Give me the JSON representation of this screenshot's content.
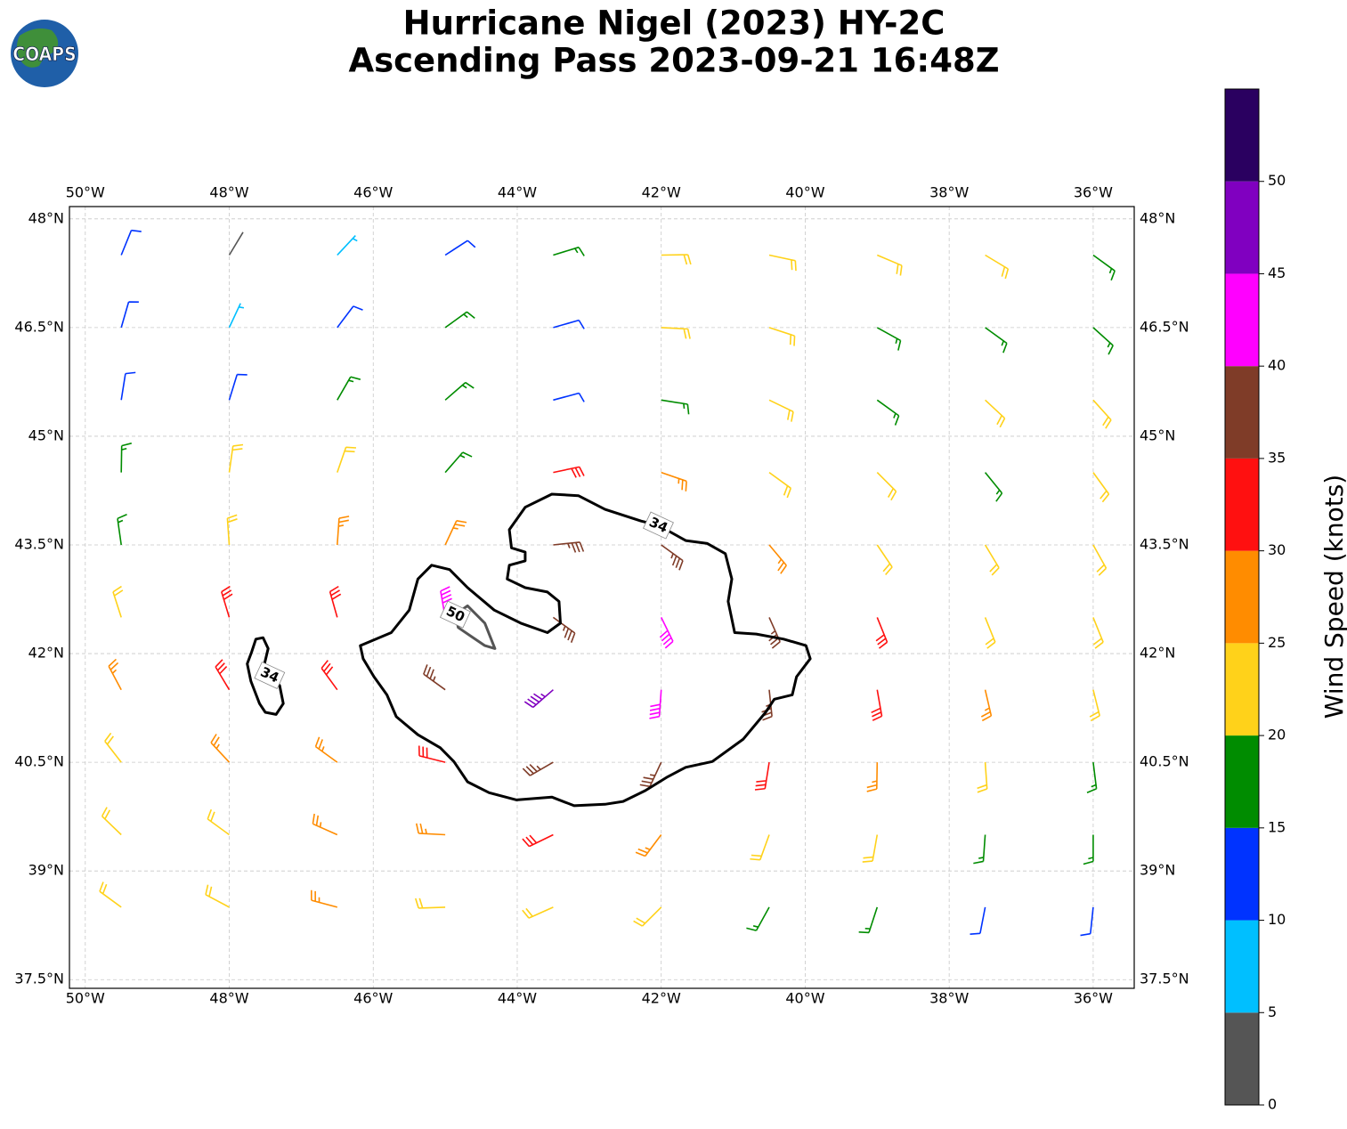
{
  "chart_data": {
    "type": "wind_barbs",
    "title": [
      "Hurricane Nigel (2023) HY-2C",
      "Ascending Pass 2023-09-21 16:48Z"
    ],
    "logo": "COAPS",
    "xlim": [
      -50.22,
      -35.43
    ],
    "ylim": [
      37.38,
      48.17
    ],
    "xticks": [
      {
        "value": -50,
        "label": "50°W"
      },
      {
        "value": -48,
        "label": "48°W"
      },
      {
        "value": -46,
        "label": "46°W"
      },
      {
        "value": -44,
        "label": "44°W"
      },
      {
        "value": -42,
        "label": "42°W"
      },
      {
        "value": -40,
        "label": "40°W"
      },
      {
        "value": -38,
        "label": "38°W"
      },
      {
        "value": -36,
        "label": "36°W"
      }
    ],
    "yticks": [
      {
        "value": 48,
        "label": "48°N"
      },
      {
        "value": 46.5,
        "label": "46.5°N"
      },
      {
        "value": 45,
        "label": "45°N"
      },
      {
        "value": 43.5,
        "label": "43.5°N"
      },
      {
        "value": 42,
        "label": "42°N"
      },
      {
        "value": 40.5,
        "label": "40.5°N"
      },
      {
        "value": 39,
        "label": "39°N"
      },
      {
        "value": 37.5,
        "label": "37.5°N"
      }
    ],
    "grid": true,
    "barbs": {
      "lon": [
        -49.5,
        -48,
        -46.5,
        -45,
        -43.5,
        -42,
        -40.5,
        -39,
        -37.5,
        -36
      ],
      "lat": [
        47.5,
        46.5,
        45.5,
        44.5,
        43.5,
        42.5,
        41.5,
        40.5,
        39.5,
        38.5
      ],
      "speed": [
        [
          10,
          3,
          8,
          11,
          17,
          22,
          23,
          22,
          21,
          18
        ],
        [
          12,
          9,
          11,
          16,
          14,
          21,
          23,
          18,
          17,
          16
        ],
        [
          11,
          12,
          17,
          18,
          13,
          19,
          21,
          19,
          21,
          22
        ],
        [
          16,
          21,
          23,
          15,
          30,
          27,
          24,
          22,
          18,
          21
        ],
        [
          17,
          24,
          28,
          29,
          37,
          38,
          27,
          24,
          22,
          21
        ],
        [
          21,
          32,
          33,
          43,
          36,
          42,
          36,
          31,
          24,
          22
        ],
        [
          26,
          33,
          34,
          38,
          46,
          43,
          37,
          32,
          27,
          23
        ],
        [
          24,
          29,
          28,
          33,
          38,
          37,
          33,
          27,
          23,
          19
        ],
        [
          22,
          24,
          27,
          29,
          32,
          28,
          24,
          21,
          18,
          17
        ],
        [
          22,
          23,
          26,
          24,
          23,
          22,
          19,
          17,
          13,
          14
        ]
      ],
      "direction": [
        [
          22,
          31,
          43,
          57,
          73,
          89,
          102,
          113,
          121,
          126
        ],
        [
          16,
          25,
          37,
          54,
          74,
          93,
          108,
          119,
          126,
          132
        ],
        [
          9,
          17,
          30,
          49,
          75,
          99,
          116,
          126,
          133,
          138
        ],
        [
          1,
          8,
          19,
          41,
          78,
          109,
          126,
          135,
          141,
          144
        ],
        [
          352,
          356,
          4,
          25,
          84,
          126,
          140,
          146,
          149,
          151
        ],
        [
          342,
          343,
          344,
          350,
          126,
          154,
          156,
          158,
          158,
          158
        ],
        [
          332,
          329,
          324,
          306,
          229,
          184,
          174,
          170,
          167,
          166
        ],
        [
          322,
          317,
          306,
          284,
          240,
          205,
          189,
          181,
          176,
          173
        ],
        [
          314,
          306,
          294,
          273,
          244,
          217,
          200,
          190,
          184,
          180
        ],
        [
          306,
          298,
          285,
          268,
          246,
          225,
          209,
          198,
          191,
          186
        ]
      ]
    },
    "contours": [
      {
        "level": 34,
        "color": "#000000",
        "lon": [
          -46.18,
          -45.75,
          -45.5,
          -45.38,
          -45.19,
          -44.94,
          -44.69,
          -44.32,
          -43.95,
          -43.58,
          -43.4,
          -43.42,
          -43.58,
          -43.89,
          -44.14,
          -44.11,
          -43.89,
          -43.89,
          -44.08,
          -44.11,
          -43.89,
          -43.52,
          -43.15,
          -42.78,
          -42.28,
          -42.04,
          -41.66,
          -41.36,
          -41.11,
          -41.02,
          -41.07,
          -40.98,
          -40.68,
          -40.3,
          -39.99,
          -39.93,
          -40.12,
          -40.18,
          -40.43,
          -40.55,
          -40.86,
          -41.29,
          -41.66,
          -41.91,
          -42.22,
          -42.53,
          -42.78,
          -43.21,
          -43.52,
          -44.01,
          -44.39,
          -44.69,
          -44.88,
          -45.07,
          -45.38,
          -45.68,
          -45.81,
          -45.99,
          -46.14
        ],
        "lat": [
          42.11,
          42.29,
          42.6,
          43.03,
          43.22,
          43.16,
          42.91,
          42.6,
          42.42,
          42.29,
          42.42,
          42.72,
          42.85,
          42.91,
          43.03,
          43.22,
          43.28,
          43.4,
          43.46,
          43.71,
          44.02,
          44.2,
          44.18,
          43.99,
          43.83,
          43.77,
          43.56,
          43.52,
          43.38,
          43.03,
          42.72,
          42.29,
          42.27,
          42.2,
          42.11,
          41.93,
          41.68,
          41.43,
          41.37,
          41.19,
          40.82,
          40.51,
          40.43,
          40.3,
          40.11,
          39.96,
          39.92,
          39.9,
          40.02,
          39.98,
          40.08,
          40.23,
          40.51,
          40.7,
          40.88,
          41.13,
          41.43,
          41.68,
          41.93
        ]
      },
      {
        "level": 34,
        "color": "#000000",
        "lon": [
          -47.44,
          -47.51,
          -47.46,
          -47.53,
          -47.63,
          -47.69,
          -47.75,
          -47.7,
          -47.58,
          -47.5,
          -47.35,
          -47.25,
          -47.3
        ],
        "lat": [
          41.7,
          41.86,
          42.07,
          42.22,
          42.2,
          42.02,
          41.86,
          41.62,
          41.31,
          41.19,
          41.16,
          41.31,
          41.56
        ]
      },
      {
        "level": 50,
        "color": "#555555",
        "lon": [
          -44.86,
          -44.69,
          -44.45,
          -44.31,
          -44.45,
          -44.63,
          -44.82
        ],
        "lat": [
          42.54,
          42.66,
          42.42,
          42.07,
          42.11,
          42.23,
          42.36
        ]
      }
    ],
    "colorbar": {
      "label": "Wind Speed (knots)",
      "bounds": [
        0,
        5,
        10,
        15,
        20,
        25,
        30,
        35,
        40,
        45,
        50,
        55
      ],
      "colors": [
        "#555555",
        "#00bfff",
        "#0033ff",
        "#008c00",
        "#ffd21a",
        "#ff8c00",
        "#ff1010",
        "#7f3c28",
        "#ff00ff",
        "#8000c0",
        "#2a0060"
      ],
      "ticks": [
        0,
        5,
        10,
        15,
        20,
        25,
        30,
        35,
        40,
        45,
        50
      ]
    }
  }
}
